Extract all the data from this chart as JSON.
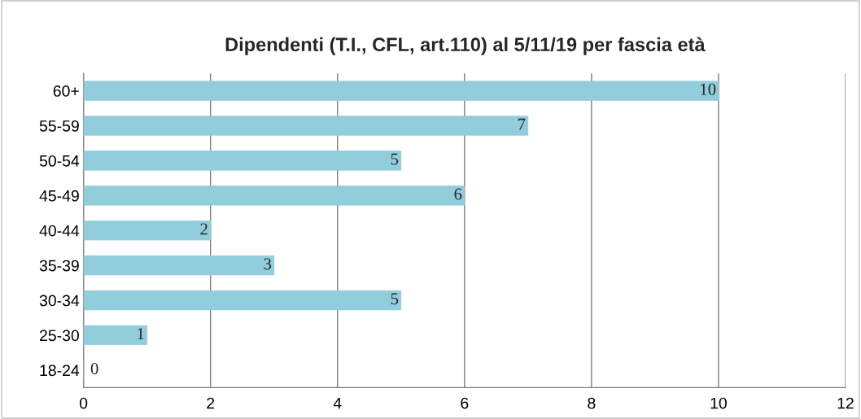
{
  "chart_data": {
    "type": "bar",
    "orientation": "horizontal",
    "title": "Dipendenti (T.I., CFL, art.110) al 5/11/19 per fascia età",
    "categories": [
      "60+",
      "55-59",
      "50-54",
      "45-49",
      "40-44",
      "35-39",
      "30-34",
      "25-30",
      "18-24"
    ],
    "values": [
      10,
      7,
      5,
      6,
      2,
      3,
      5,
      1,
      0
    ],
    "color": "#92cddc",
    "xlim": [
      0,
      12
    ],
    "xticks": [
      0,
      2,
      4,
      6,
      8,
      10,
      12
    ],
    "grid": "x",
    "data_labels": true,
    "legend": false
  }
}
